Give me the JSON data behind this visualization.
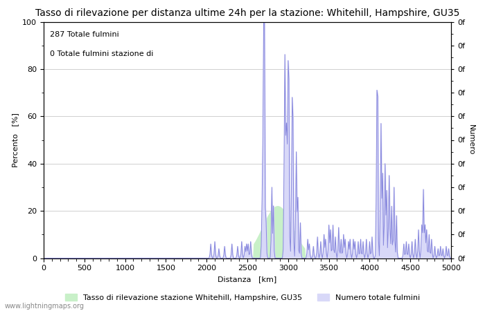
{
  "title": "Tasso di rilevazione per distanza ultime 24h per la stazione: Whitehill, Hampshire, GU35",
  "xlabel": "Distanza   [km]",
  "ylabel_left": "Percento   [%]",
  "ylabel_right": "Numero",
  "annotation_line1": "287 Totale fulmini",
  "annotation_line2": "0 Totale fulmini stazione di",
  "xlim": [
    0,
    5000
  ],
  "ylim": [
    0,
    100
  ],
  "xticks": [
    0,
    500,
    1000,
    1500,
    2000,
    2500,
    3000,
    3500,
    4000,
    4500,
    5000
  ],
  "yticks_left": [
    0,
    20,
    40,
    60,
    80,
    100
  ],
  "legend_label1": "Tasso di rilevazione stazione Whitehill, Hampshire, GU35",
  "legend_label2": "Numero totale fulmini",
  "fill_green_color": "#c8f0c8",
  "fill_blue_color": "#d8d8f8",
  "line_blue_color": "#8888dd",
  "watermark": "www.lightningmaps.org",
  "bg_color": "#ffffff",
  "grid_color": "#c8c8c8",
  "title_fontsize": 10,
  "axis_fontsize": 8,
  "tick_fontsize": 8
}
